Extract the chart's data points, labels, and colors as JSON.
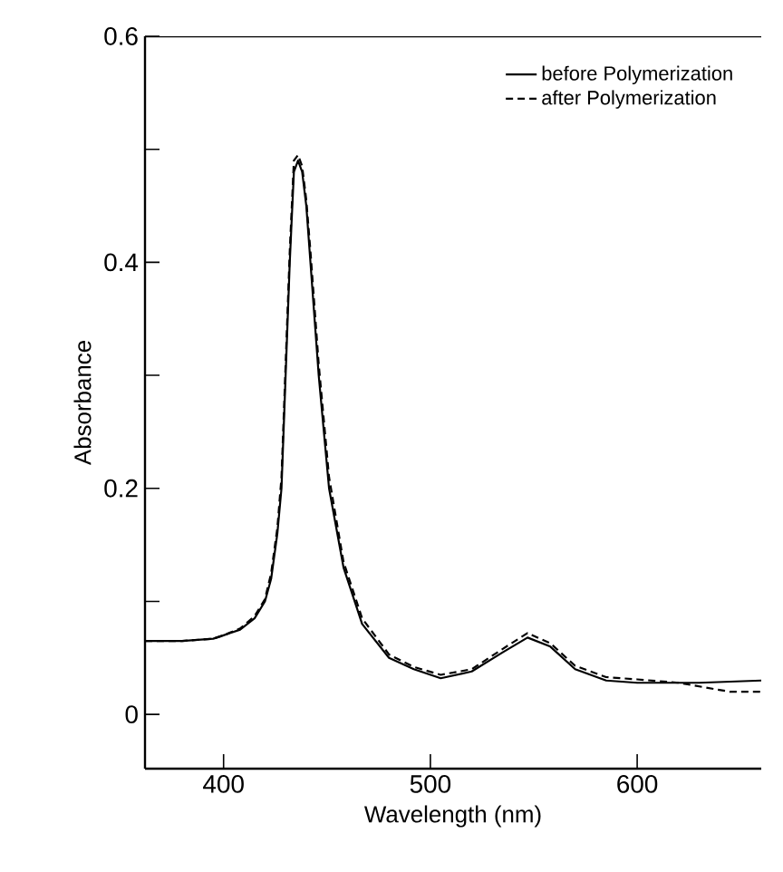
{
  "chart_data": {
    "type": "line",
    "xlabel": "Wavelength (nm)",
    "ylabel": "Absorbance",
    "xlim": [
      362,
      660
    ],
    "ylim": [
      -0.048,
      0.6
    ],
    "xticks": [
      400,
      500,
      600
    ],
    "yticks": [
      0,
      {
        "value": 0.1,
        "label": null
      },
      0.2,
      {
        "value": 0.3,
        "label": null
      },
      0.4,
      {
        "value": 0.5,
        "label": null
      },
      0.6
    ],
    "legend": "top right",
    "grid": false,
    "marker": "none",
    "series": [
      {
        "name": "before Polymerization",
        "color": "#000000",
        "line_style": "solid",
        "x": [
          362,
          380,
          395,
          400,
          408,
          415,
          420,
          423,
          426,
          428,
          430,
          432,
          434,
          436,
          438,
          440,
          442,
          446,
          451,
          458,
          467,
          480,
          492,
          505,
          520,
          535,
          547,
          558,
          570,
          585,
          600,
          630,
          660
        ],
        "values": [
          0.065,
          0.065,
          0.067,
          0.07,
          0.075,
          0.085,
          0.1,
          0.12,
          0.16,
          0.2,
          0.3,
          0.4,
          0.48,
          0.49,
          0.48,
          0.45,
          0.4,
          0.3,
          0.2,
          0.13,
          0.08,
          0.05,
          0.04,
          0.032,
          0.038,
          0.055,
          0.068,
          0.06,
          0.04,
          0.03,
          0.028,
          0.028,
          0.03
        ]
      },
      {
        "name": "after Polymerization",
        "color": "#000000",
        "line_style": "dashed",
        "x": [
          362,
          380,
          395,
          400,
          408,
          415,
          420,
          423,
          426,
          428,
          430,
          432,
          434,
          436,
          438,
          440,
          442,
          446,
          451,
          458,
          467,
          480,
          492,
          505,
          520,
          535,
          547,
          558,
          570,
          585,
          600,
          620,
          645,
          660
        ],
        "values": [
          0.065,
          0.065,
          0.067,
          0.07,
          0.076,
          0.087,
          0.102,
          0.125,
          0.165,
          0.21,
          0.31,
          0.41,
          0.49,
          0.495,
          0.485,
          0.455,
          0.41,
          0.31,
          0.21,
          0.135,
          0.085,
          0.053,
          0.042,
          0.035,
          0.04,
          0.058,
          0.072,
          0.063,
          0.043,
          0.033,
          0.031,
          0.028,
          0.02,
          0.02
        ]
      }
    ]
  }
}
